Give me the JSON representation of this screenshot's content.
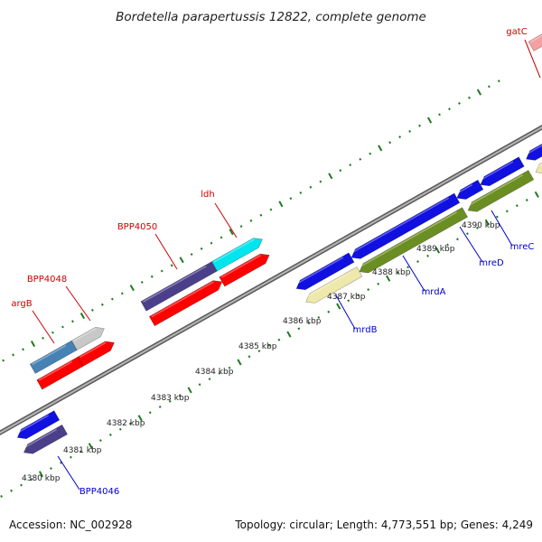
{
  "title": "Bordetella parapertussis 12822, complete genome",
  "footer": {
    "accession": "Accession: NC_002928",
    "summary": "Topology: circular; Length: 4,773,551 bp; Genes: 4,249"
  },
  "colors": {
    "backbone": "#8a8a8a",
    "tick": "#1f7a1f",
    "forward_label": "#cc0000",
    "reverse_label": "#0000cc"
  },
  "scale_labels": [
    "4380 kbp",
    "4381 kbp",
    "4382 kbp",
    "4383 kbp",
    "4384 kbp",
    "4385 kbp",
    "4386 kbp",
    "4387 kbp",
    "4388 kbp",
    "4389 kbp",
    "4390 kbp"
  ],
  "genes": [
    {
      "name": "gatC",
      "strand": "forward",
      "color": "#f4a0a0"
    },
    {
      "name": "ldh",
      "strand": "forward",
      "color": "#00e5ee"
    },
    {
      "name": "BPP4050",
      "strand": "forward",
      "color": "#4b3f8a"
    },
    {
      "name": "BPP4048",
      "strand": "forward",
      "color": "#c8c8c8"
    },
    {
      "name": "argB",
      "strand": "forward",
      "color": "#4682b4"
    },
    {
      "name": "mreC",
      "strand": "reverse",
      "color": "#1010e0"
    },
    {
      "name": "mreD",
      "strand": "reverse",
      "color": "#1010e0"
    },
    {
      "name": "mrdA",
      "strand": "reverse",
      "color": "#6b8e23"
    },
    {
      "name": "mrdB",
      "strand": "reverse",
      "color": "#eee8aa"
    },
    {
      "name": "BPP4046",
      "strand": "reverse",
      "color": "#4b3f8a"
    }
  ]
}
